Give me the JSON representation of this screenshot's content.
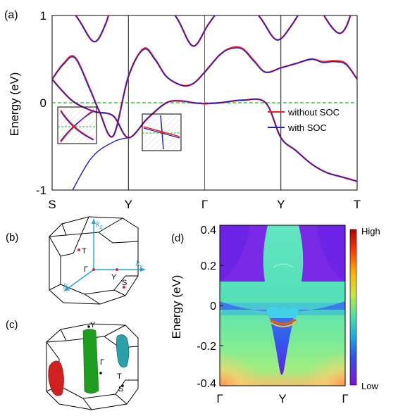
{
  "panel_a": {
    "panel_label": "(a)",
    "ylabel": "Energy (eV)",
    "yticks": [
      "1",
      "0",
      "-1"
    ],
    "xticks": [
      "S",
      "Y",
      "Γ",
      "Y",
      "T"
    ],
    "legend": [
      "without SOC",
      "with SOC"
    ],
    "colors": {
      "without_soc": "#e8222a",
      "with_soc": "#2222bb",
      "fermi": "#22bb22"
    }
  },
  "panel_b": {
    "panel_label": "(b)",
    "points": [
      "T",
      "Γ",
      "Y",
      "S"
    ],
    "axes": [
      "k",
      "k",
      "k"
    ],
    "axis_subscripts": [
      "z",
      "y",
      "x"
    ]
  },
  "panel_c": {
    "panel_label": "(c)",
    "points": [
      "Y",
      "Γ",
      "T",
      "S"
    ]
  },
  "panel_d": {
    "panel_label": "(d)",
    "ylabel": "Energy (eV)",
    "yticks": [
      "0.4",
      "0.2",
      "0",
      "-0.2",
      "-0.4"
    ],
    "xticks": [
      "Γ",
      "Y",
      "Γ"
    ],
    "colorbar": {
      "high": "High",
      "low": "Low"
    }
  },
  "chart_data": [
    {
      "type": "line",
      "title": "",
      "ylabel": "Energy (eV)",
      "xlabel": "",
      "categories": [
        "S",
        "Y",
        "Γ",
        "Y",
        "T"
      ],
      "ylim": [
        -1,
        1
      ],
      "fermi_level": 0,
      "series": [
        {
          "name": "without SOC",
          "color": "#e8222a",
          "bands": [
            {
              "x": [
                0,
                0.15,
                0.3,
                0.5,
                0.62,
                0.8,
                1.0,
                1.2,
                1.35,
                1.5,
                1.7,
                1.85,
                2.0,
                2.2,
                2.35,
                2.5,
                2.65,
                2.8,
                3.0,
                3.2,
                3.4,
                3.55,
                3.7,
                3.85,
                4.0
              ],
              "y": [
                0.27,
                0.45,
                0.52,
                0.15,
                -0.1,
                -0.38,
                0.3,
                0.62,
                0.5,
                0.3,
                0.2,
                0.22,
                0.35,
                0.55,
                0.63,
                0.62,
                0.48,
                0.35,
                0.4,
                0.45,
                0.5,
                0.47,
                0.48,
                0.45,
                0.27
              ]
            },
            {
              "x": [
                0,
                0.15,
                0.3,
                0.55,
                0.8,
                1.0,
                1.25,
                1.5,
                1.7,
                1.85,
                2.0,
                2.2,
                2.5,
                2.8,
                3.0,
                3.2,
                3.4,
                3.6,
                3.8,
                4.0
              ],
              "y": [
                0.27,
                0.12,
                0.0,
                -0.1,
                -0.15,
                -0.4,
                -0.18,
                0.0,
                0.02,
                0.0,
                -0.01,
                0.0,
                0.03,
                0.0,
                -0.4,
                -0.55,
                -0.7,
                -0.8,
                -0.85,
                -0.9
              ]
            }
          ]
        },
        {
          "name": "with SOC",
          "color": "#2222bb",
          "bands": [
            {
              "x": [
                0,
                0.15,
                0.3,
                0.5,
                0.62,
                0.8,
                1.0,
                1.2,
                1.35,
                1.5,
                1.7,
                1.85,
                2.0,
                2.2,
                2.35,
                2.5,
                2.65,
                2.8,
                3.0,
                3.2,
                3.4,
                3.55,
                3.7,
                3.85,
                4.0
              ],
              "y": [
                0.27,
                0.44,
                0.51,
                0.14,
                -0.1,
                -0.38,
                0.3,
                0.61,
                0.49,
                0.3,
                0.2,
                0.22,
                0.35,
                0.55,
                0.62,
                0.61,
                0.47,
                0.35,
                0.4,
                0.45,
                0.5,
                0.46,
                0.47,
                0.44,
                0.27
              ]
            },
            {
              "x": [
                0,
                0.15,
                0.3,
                0.55,
                0.8,
                1.0,
                1.25,
                1.5,
                1.7,
                1.85,
                2.0,
                2.2,
                2.5,
                2.8,
                3.0,
                3.2,
                3.4,
                3.6,
                3.8,
                4.0
              ],
              "y": [
                0.27,
                0.12,
                0.0,
                -0.1,
                -0.15,
                -0.4,
                -0.18,
                0.0,
                0.02,
                0.0,
                -0.01,
                0.0,
                0.03,
                0.0,
                -0.4,
                -0.55,
                -0.7,
                -0.8,
                -0.85,
                -0.9
              ]
            }
          ]
        }
      ]
    },
    {
      "type": "heatmap",
      "title": "",
      "ylabel": "Energy (eV)",
      "categories": [
        "Γ",
        "Y",
        "Γ"
      ],
      "ylim": [
        -0.4,
        0.4
      ],
      "colorbar": [
        "High",
        "Low"
      ]
    }
  ]
}
